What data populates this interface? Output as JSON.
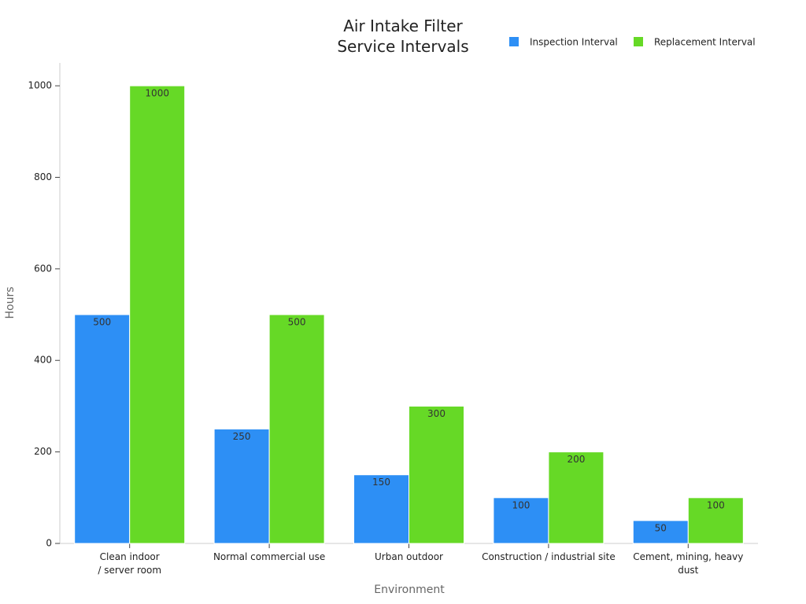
{
  "chart_data": {
    "type": "bar",
    "title": "Air Intake Filter\nService Intervals",
    "x_label": "Environment",
    "y_label": "Hours",
    "categories": [
      "Clean indoor\n/ server room",
      "Normal commercial use",
      "Urban outdoor",
      "Construction / industrial site",
      "Cement, mining, heavy dust"
    ],
    "series": [
      {
        "name": "Inspection Interval",
        "color": "#2d8ff5",
        "values": [
          500,
          250,
          150,
          100,
          50
        ]
      },
      {
        "name": "Replacement Interval",
        "color": "#66d926",
        "values": [
          1000,
          500,
          300,
          200,
          100
        ]
      }
    ],
    "ylim": [
      0,
      1050
    ],
    "yticks": [
      0,
      200,
      400,
      600,
      800,
      1000
    ],
    "grid": false,
    "legend": "top-right"
  }
}
